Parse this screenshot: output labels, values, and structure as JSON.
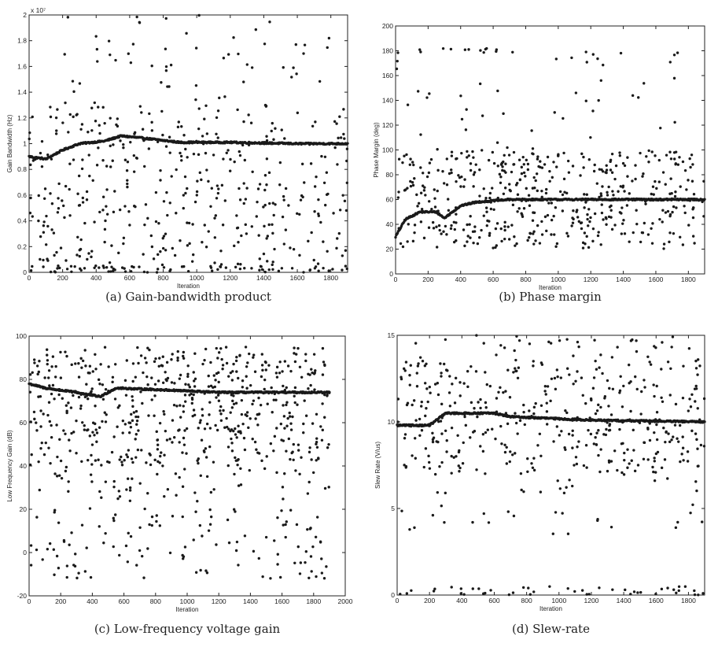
{
  "chart_data": [
    {
      "type": "scatter",
      "caption": "(a)  Gain-bandwidth product",
      "xlabel": "Iteration",
      "ylabel": "Gain Bandwidth (Hz)",
      "exponent": "x 10⁷",
      "xlim": [
        0,
        1900
      ],
      "ylim": [
        0,
        2
      ],
      "xticks": [
        0,
        200,
        400,
        600,
        800,
        1000,
        1200,
        1400,
        1600,
        1800
      ],
      "yticks": [
        0,
        0.2,
        0.4,
        0.6,
        0.8,
        1,
        1.2,
        1.4,
        1.6,
        1.8,
        2
      ],
      "grid": false,
      "legend": "none",
      "trend": [
        [
          0,
          0.9
        ],
        [
          100,
          0.88
        ],
        [
          200,
          0.95
        ],
        [
          300,
          1.0
        ],
        [
          450,
          1.02
        ],
        [
          550,
          1.06
        ],
        [
          700,
          1.04
        ],
        [
          900,
          1.01
        ],
        [
          1200,
          1.01
        ],
        [
          1600,
          1.0
        ],
        [
          1900,
          1.0
        ]
      ],
      "scatter_ranges": [
        [
          0,
          1900,
          0,
          1.3,
          420
        ],
        [
          200,
          1800,
          1.3,
          2.0,
          55
        ],
        [
          0,
          1900,
          0,
          0.05,
          60
        ]
      ]
    },
    {
      "type": "scatter",
      "caption": "(b)  Phase margin",
      "xlabel": "Iteration",
      "ylabel": "Phase Margin (deg)",
      "xlim": [
        0,
        1900
      ],
      "ylim": [
        0,
        200
      ],
      "xticks": [
        0,
        200,
        400,
        600,
        800,
        1000,
        1200,
        1400,
        1600,
        1800
      ],
      "yticks": [
        0,
        20,
        40,
        60,
        80,
        100,
        120,
        140,
        160,
        180,
        200
      ],
      "grid": false,
      "legend": "none",
      "trend": [
        [
          0,
          30
        ],
        [
          60,
          44
        ],
        [
          150,
          50
        ],
        [
          250,
          50
        ],
        [
          300,
          45
        ],
        [
          400,
          55
        ],
        [
          500,
          58
        ],
        [
          700,
          60
        ],
        [
          1900,
          60
        ]
      ],
      "scatter_ranges": [
        [
          0,
          1900,
          20,
          100,
          480
        ],
        [
          0,
          1800,
          100,
          180,
          45
        ],
        [
          0,
          800,
          178,
          182,
          14
        ]
      ]
    },
    {
      "type": "scatter",
      "caption": "(c)  Low-frequency voltage gain",
      "xlabel": "Iteration",
      "ylabel": "Low Frequency Gain (dB)",
      "xlim": [
        0,
        2000
      ],
      "ylim": [
        -20,
        100
      ],
      "xticks": [
        0,
        200,
        400,
        600,
        800,
        1000,
        1200,
        1400,
        1600,
        1800,
        2000
      ],
      "yticks": [
        -20,
        0,
        20,
        40,
        60,
        80,
        100
      ],
      "grid": false,
      "legend": "none",
      "trend": [
        [
          0,
          78
        ],
        [
          100,
          76
        ],
        [
          300,
          74
        ],
        [
          450,
          72
        ],
        [
          550,
          76
        ],
        [
          900,
          75
        ],
        [
          1200,
          74
        ],
        [
          1900,
          74
        ]
      ],
      "scatter_ranges": [
        [
          0,
          1900,
          55,
          95,
          420
        ],
        [
          0,
          1900,
          40,
          55,
          130
        ],
        [
          0,
          1900,
          -12,
          40,
          180
        ]
      ]
    },
    {
      "type": "scatter",
      "caption": "(d)  Slew-rate",
      "xlabel": "Iteration",
      "ylabel": "Slew Rate (V/us)",
      "xlim": [
        0,
        1900
      ],
      "ylim": [
        0,
        15
      ],
      "xticks": [
        0,
        200,
        400,
        600,
        800,
        1000,
        1200,
        1400,
        1600,
        1800
      ],
      "yticks": [
        0,
        5,
        10,
        15
      ],
      "grid": false,
      "legend": "none",
      "trend": [
        [
          0,
          9.8
        ],
        [
          200,
          9.8
        ],
        [
          300,
          10.5
        ],
        [
          600,
          10.5
        ],
        [
          700,
          10.3
        ],
        [
          1200,
          10.1
        ],
        [
          1900,
          10.0
        ]
      ],
      "scatter_ranges": [
        [
          0,
          1900,
          7,
          13.5,
          380
        ],
        [
          0,
          1900,
          13.5,
          15,
          40
        ],
        [
          0,
          1900,
          0,
          0.5,
          45
        ],
        [
          0,
          1900,
          3.5,
          7,
          40
        ]
      ]
    }
  ]
}
